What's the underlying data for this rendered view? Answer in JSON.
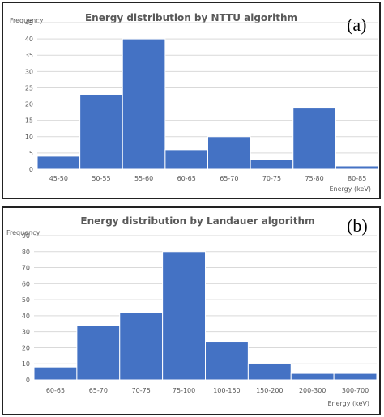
{
  "chart_data": [
    {
      "type": "bar",
      "panel_label": "(a)",
      "title": "Energy distribution by NTTU algorithm",
      "ylabel": "Frequency",
      "xlabel": "Energy (keV)",
      "categories": [
        "45-50",
        "50-55",
        "55-60",
        "60-65",
        "65-70",
        "70-75",
        "75-80",
        "80-85"
      ],
      "values": [
        4,
        23,
        40,
        6,
        10,
        3,
        19,
        1
      ],
      "ylim": [
        0,
        45
      ],
      "yticks": [
        0,
        5,
        10,
        15,
        20,
        25,
        30,
        35,
        40,
        45
      ],
      "grid": true,
      "bar_color": "#4472c4"
    },
    {
      "type": "bar",
      "panel_label": "(b)",
      "title": "Energy distribution by Landauer algorithm",
      "ylabel": "Frequency",
      "xlabel": "Energy (keV)",
      "categories": [
        "60-65",
        "65-70",
        "70-75",
        "75-100",
        "100-150",
        "150-200",
        "200-300",
        "300-700"
      ],
      "values": [
        8,
        34,
        42,
        80,
        24,
        10,
        4,
        4
      ],
      "ylim": [
        0,
        90
      ],
      "yticks": [
        0,
        10,
        20,
        30,
        40,
        50,
        60,
        70,
        80,
        90
      ],
      "grid": true,
      "bar_color": "#4472c4"
    }
  ]
}
